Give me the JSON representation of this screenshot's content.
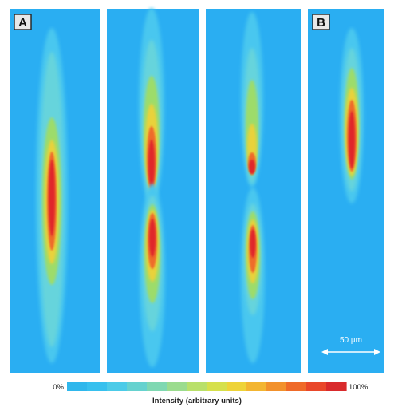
{
  "panels": {
    "label_a": "A",
    "label_b": "B"
  },
  "scale_bar": {
    "label": "50 µm"
  },
  "colorbar": {
    "min_label": "0%",
    "max_label": "100%",
    "title": "Intensity (arbitrary units)",
    "colors": [
      "#2fb7ec",
      "#37c0ee",
      "#4ccbe8",
      "#66d2cf",
      "#7fd8b2",
      "#9bdc8e",
      "#b9e06a",
      "#d6e04b",
      "#eed338",
      "#f3b531",
      "#f2912c",
      "#ef6a29",
      "#e9472a",
      "#d92a2c"
    ]
  },
  "colors": {
    "background": "#2aaef2",
    "low": "#5fd3d6",
    "mid": "#a8de5c",
    "high": "#f1c12c",
    "peak": "#e0262b"
  }
}
